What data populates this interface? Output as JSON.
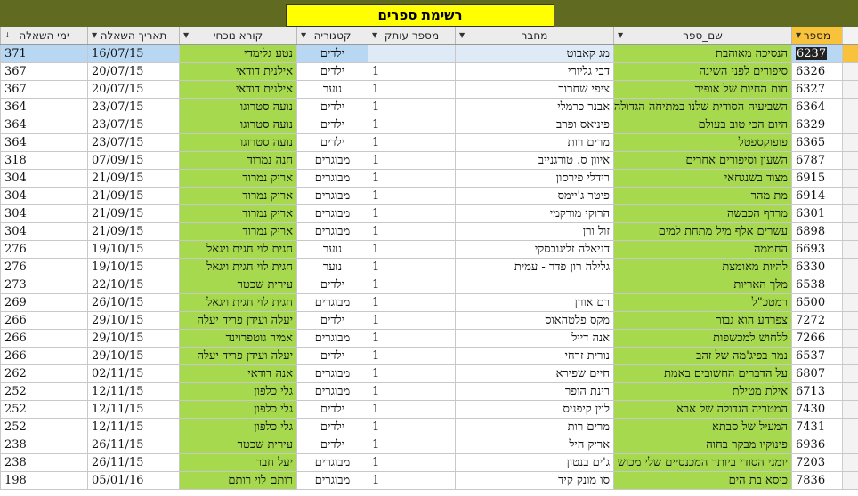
{
  "title": "רשימת ספרים",
  "columns": [
    {
      "label": "מספר",
      "icon": "dropdown-arrow-icon"
    },
    {
      "label": "שם_ספר",
      "icon": "dropdown-arrow-icon"
    },
    {
      "label": "מחבר",
      "icon": "dropdown-arrow-icon"
    },
    {
      "label": "מספר עותק",
      "icon": "dropdown-arrow-icon"
    },
    {
      "label": "קטגוריה",
      "icon": "dropdown-arrow-icon"
    },
    {
      "label": "קורא נוכחי",
      "icon": "dropdown-arrow-icon"
    },
    {
      "label": "תאריך השאלה",
      "icon": "dropdown-arrow-icon"
    },
    {
      "label": "ימי השאלה",
      "icon": "sort-icon"
    }
  ],
  "rows": [
    {
      "id": "6237",
      "name": "הנסיכה מאוהבת",
      "author": "מג קאבוט",
      "copy": "",
      "category": "ילדים",
      "reader": "נטע גלימדי",
      "date": "16/07/15",
      "days": "371"
    },
    {
      "id": "6326",
      "name": "סיפורים לפני השינה",
      "author": "דבי גליורי",
      "copy": "1",
      "category": "ילדים",
      "reader": "אילנית דודאי",
      "date": "20/07/15",
      "days": "367"
    },
    {
      "id": "6327",
      "name": "חות החיות של אופיר",
      "author": "ציפי שחרור",
      "copy": "1",
      "category": "נוער",
      "reader": "אילנית דודאי",
      "date": "20/07/15",
      "days": "367"
    },
    {
      "id": "6364",
      "name": "השביעיה הסודית שלנו במתיחה הגדולה",
      "author": "אבנר כרמלי",
      "copy": "1",
      "category": "ילדים",
      "reader": "נועה סטרוגו",
      "date": "23/07/15",
      "days": "364"
    },
    {
      "id": "6329",
      "name": "היום הכי טוב בעולם",
      "author": "פיניאס ופרב",
      "copy": "1",
      "category": "ילדים",
      "reader": "נועה סטרוגו",
      "date": "23/07/15",
      "days": "364"
    },
    {
      "id": "6365",
      "name": "פופוקספטל",
      "author": "מרים רות",
      "copy": "1",
      "category": "ילדים",
      "reader": "נועה סטרוגו",
      "date": "23/07/15",
      "days": "364"
    },
    {
      "id": "6787",
      "name": "השעון וסיפורים אחרים",
      "author": "איוון ס. טורגנייב",
      "copy": "1",
      "category": "מבוגרים",
      "reader": "חנה נמרוד",
      "date": "07/09/15",
      "days": "318"
    },
    {
      "id": "6915",
      "name": "מצוד בשנגחאי",
      "author": "רידלי פירסון",
      "copy": "1",
      "category": "מבוגרים",
      "reader": "אריק נמרוד",
      "date": "21/09/15",
      "days": "304"
    },
    {
      "id": "6914",
      "name": "מת מהר",
      "author": "פיטר ג'יימס",
      "copy": "1",
      "category": "מבוגרים",
      "reader": "אריק נמרוד",
      "date": "21/09/15",
      "days": "304"
    },
    {
      "id": "6301",
      "name": "מרדף הכבשה",
      "author": "הרוקי מורקמי",
      "copy": "1",
      "category": "מבוגרים",
      "reader": "אריק נמרוד",
      "date": "21/09/15",
      "days": "304"
    },
    {
      "id": "6898",
      "name": "עשרים אלף מיל מתחת למים",
      "author": "זול ורן",
      "copy": "1",
      "category": "מבוגרים",
      "reader": "אריק נמרוד",
      "date": "21/09/15",
      "days": "304"
    },
    {
      "id": "6693",
      "name": "החממה",
      "author": "דניאלה זליגובסקי",
      "copy": "1",
      "category": "נוער",
      "reader": "חגית לוי חגית ויגאל",
      "date": "19/10/15",
      "days": "276"
    },
    {
      "id": "6330",
      "name": "להיות מאומצת",
      "author": "גלילה רון פדר - עמית",
      "copy": "1",
      "category": "נוער",
      "reader": "חגית לוי חגית ויגאל",
      "date": "19/10/15",
      "days": "276"
    },
    {
      "id": "6538",
      "name": "מלך האריות",
      "author": "",
      "copy": "1",
      "category": "ילדים",
      "reader": "עירית שכטר",
      "date": "22/10/15",
      "days": "273"
    },
    {
      "id": "6500",
      "name": "רמטכ\"ל",
      "author": "רם אורן",
      "copy": "1",
      "category": "מבוגרים",
      "reader": "חגית לוי חגית ויגאל",
      "date": "26/10/15",
      "days": "269"
    },
    {
      "id": "7272",
      "name": "צפרדע הוא גבור",
      "author": "מקס פלטהאוס",
      "copy": "1",
      "category": "ילדים",
      "reader": "יעלה ועידן פריד יעלה",
      "date": "29/10/15",
      "days": "266"
    },
    {
      "id": "7266",
      "name": "ללחוש למכשפות",
      "author": "אנה דייל",
      "copy": "1",
      "category": "מבוגרים",
      "reader": "אמיר גוטפרוינד",
      "date": "29/10/15",
      "days": "266"
    },
    {
      "id": "6537",
      "name": "נמר בפיג'מה של זהב",
      "author": "נורית זרחי",
      "copy": "1",
      "category": "ילדים",
      "reader": "יעלה ועידן פריד יעלה",
      "date": "29/10/15",
      "days": "266"
    },
    {
      "id": "6807",
      "name": "על הדברים החשובים באמת",
      "author": "חיים שפירא",
      "copy": "1",
      "category": "מבוגרים",
      "reader": "אנה דודאי",
      "date": "02/11/15",
      "days": "262"
    },
    {
      "id": "6713",
      "name": "אילת מטילת",
      "author": "רינת הופר",
      "copy": "1",
      "category": "מבוגרים",
      "reader": "גלי כלפון",
      "date": "12/11/15",
      "days": "252"
    },
    {
      "id": "7430",
      "name": "המטריה הגדולה של אבא",
      "author": "לוין קיפניס",
      "copy": "1",
      "category": "ילדים",
      "reader": "גלי כלפון",
      "date": "12/11/15",
      "days": "252"
    },
    {
      "id": "7431",
      "name": "המעיל של סבתא",
      "author": "מרים רות",
      "copy": "1",
      "category": "ילדים",
      "reader": "גלי כלפון",
      "date": "12/11/15",
      "days": "252"
    },
    {
      "id": "6936",
      "name": "פינוקיו מבקר בחוה",
      "author": "אריק היל",
      "copy": "1",
      "category": "ילדים",
      "reader": "עירית שכטר",
      "date": "26/11/15",
      "days": "238"
    },
    {
      "id": "7203",
      "name": "יומני הסודי ביותר המכנסיים שלי מכוש",
      "author": "ג'ים בנטון",
      "copy": "1",
      "category": "מבוגרים",
      "reader": "יעל חבר",
      "date": "26/11/15",
      "days": "238"
    },
    {
      "id": "7836",
      "name": "כיסא בת הים",
      "author": "סו מונק קיד",
      "copy": "1",
      "category": "מבוגרים",
      "reader": "רותם לוי רותם",
      "date": "05/01/16",
      "days": "198"
    }
  ]
}
